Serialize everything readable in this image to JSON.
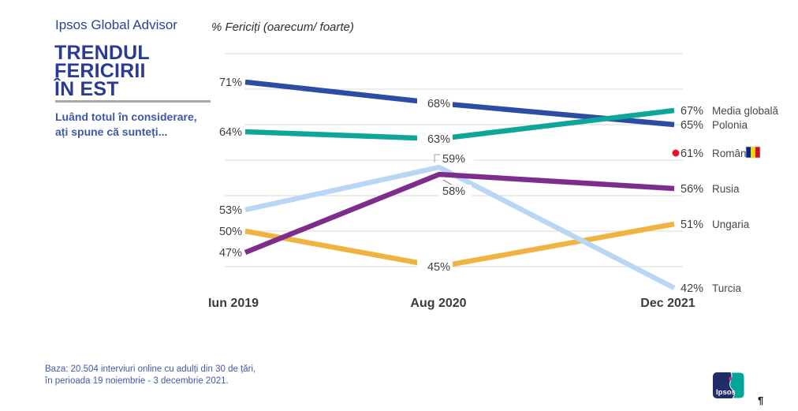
{
  "header": {
    "brand": "Ipsos Global Advisor",
    "title_lines": [
      "TRENDUL",
      "FERICIRII",
      "ÎN EST"
    ],
    "subtitle_lines": [
      "Luând totul în considerare,",
      "ați spune că sunteți..."
    ]
  },
  "chart_data": {
    "type": "line",
    "title": "% Fericiți (oarecum/ foarte)",
    "x_labels": [
      "Iun 2019",
      "Aug 2020",
      "Dec 2021"
    ],
    "ylim": [
      40,
      77
    ],
    "grid": true,
    "grid_values": [
      75,
      70,
      65,
      60,
      55,
      50,
      45
    ],
    "legend_position": "right-of-line-ends",
    "value_label_suffix": "%",
    "series": [
      {
        "name": "Ungaria",
        "color": "#F0B342",
        "values": [
          50,
          45,
          51
        ]
      },
      {
        "name": "Turcia",
        "color": "#BAD6F5",
        "values": [
          53,
          59,
          42
        ]
      },
      {
        "name": "Rusia",
        "color": "#7D2E8D",
        "values": [
          47,
          58,
          56
        ]
      },
      {
        "name": "Polonia",
        "color": "#2D4CA3",
        "values": [
          71,
          68,
          65
        ]
      },
      {
        "name": "Media globală",
        "color": "#0EA69A",
        "values": [
          64,
          63,
          67
        ]
      },
      {
        "name": "România",
        "color": "#E8112D",
        "values": [
          null,
          null,
          61
        ],
        "marker_only": true,
        "flag": "romania"
      }
    ],
    "flag_colors": {
      "romania": [
        "#002B7F",
        "#FCD116",
        "#CE1126"
      ]
    }
  },
  "footer": {
    "lines": [
      "Baza: 20.504 interviuri online cu adulți din 30 de țări,",
      "în perioada 19 noiembrie - 3 decembrie 2021."
    ],
    "mark": "¶"
  },
  "logo": {
    "text": "Ipsos"
  }
}
